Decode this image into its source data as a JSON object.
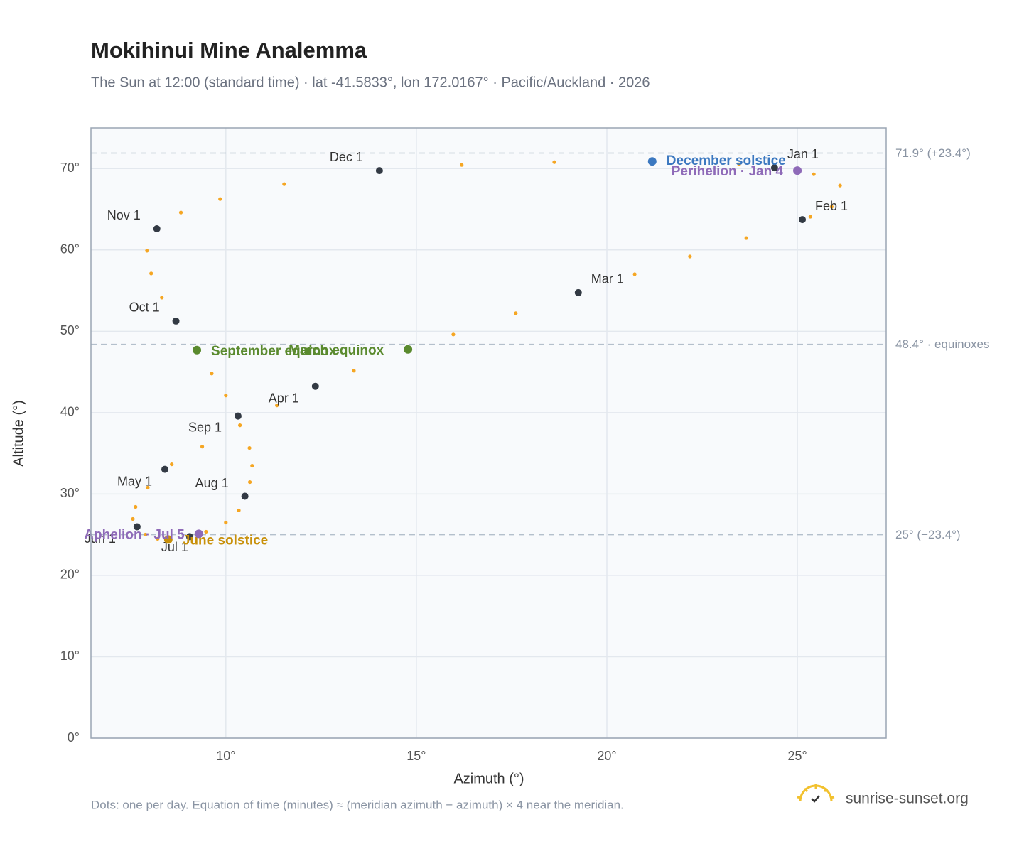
{
  "chart_data": {
    "type": "scatter",
    "title": "Mokihinui Mine Analemma",
    "subtitle": "The Sun at 12:00 (standard time) · lat -41.5833°, lon 172.0167° · Pacific/Auckland · 2026",
    "x_label": "Azimuth (°)",
    "y_label": "Altitude (°)",
    "xlim": [
      6.46,
      27.33
    ],
    "ylim": [
      0,
      75
    ],
    "xticks": [
      {
        "value": 10,
        "label": "10°"
      },
      {
        "value": 15,
        "label": "15°"
      },
      {
        "value": 20,
        "label": "20°"
      },
      {
        "value": 25,
        "label": "25°"
      }
    ],
    "yticks": [
      {
        "value": 0,
        "label": "0°"
      },
      {
        "value": 10,
        "label": "10°"
      },
      {
        "value": 20,
        "label": "20°"
      },
      {
        "value": 30,
        "label": "30°"
      },
      {
        "value": 40,
        "label": "40°"
      },
      {
        "value": 50,
        "label": "50°"
      },
      {
        "value": 60,
        "label": "60°"
      },
      {
        "value": 70,
        "label": "70°"
      }
    ],
    "grid": true,
    "series": [
      {
        "color": "#f5a623",
        "x": [
          24.4,
          25.43,
          26.12,
          25.9,
          25.34,
          25.13,
          23.66,
          22.18,
          20.73,
          19.25,
          17.61,
          15.97,
          14.78,
          13.36,
          12.35,
          11.34,
          10.37,
          9.38,
          8.58,
          8.4,
          7.95,
          7.63,
          7.56,
          7.67,
          7.89,
          8.21,
          8.49,
          9.05,
          9.48,
          10.0,
          10.34,
          10.5,
          10.63,
          10.69,
          10.62,
          10.32,
          10.0,
          9.63,
          9.24,
          8.69,
          8.32,
          8.04,
          7.93,
          8.19,
          8.82,
          9.85,
          11.53,
          14.03,
          16.19,
          18.62,
          21.19,
          23.47
        ],
        "values": [
          70.1,
          69.31,
          67.92,
          65.3,
          64.08,
          63.73,
          61.46,
          59.2,
          57.02,
          54.75,
          52.22,
          49.61,
          47.78,
          45.16,
          43.24,
          40.89,
          38.45,
          35.83,
          33.65,
          33.04,
          30.78,
          28.42,
          26.94,
          25.98,
          25.02,
          24.5,
          24.41,
          24.76,
          25.37,
          26.5,
          27.99,
          29.73,
          31.47,
          33.48,
          35.66,
          39.58,
          42.11,
          44.81,
          47.69,
          51.26,
          54.14,
          57.11,
          59.9,
          62.6,
          64.6,
          66.26,
          68.09,
          69.75,
          70.45,
          70.79,
          70.88,
          70.53
        ]
      }
    ],
    "markers": {
      "color": "#333a44",
      "labels": [
        "Jan 1",
        "Feb 1",
        "Mar 1",
        "Apr 1",
        "May 1",
        "Jun 1",
        "Jul 1",
        "Aug 1",
        "Sep 1",
        "Oct 1",
        "Nov 1",
        "Dec 1"
      ],
      "x": [
        24.4,
        25.13,
        19.25,
        12.35,
        8.4,
        7.67,
        9.05,
        10.5,
        10.32,
        8.69,
        8.19,
        14.03
      ],
      "values": [
        70.1,
        63.73,
        54.75,
        43.24,
        33.04,
        25.98,
        24.76,
        29.73,
        39.58,
        51.26,
        62.6,
        69.75
      ]
    },
    "events": [
      {
        "label": "December solstice",
        "color": "#3b78c0",
        "x": 21.19,
        "y": 70.88
      },
      {
        "label": "Perihelion · Jan 4",
        "color": "#8e6ab8",
        "x": 25.0,
        "y": 69.75
      },
      {
        "label": "March equinox",
        "color": "#5a8a2e",
        "x": 14.78,
        "y": 47.78
      },
      {
        "label": "September equinox",
        "color": "#5a8a2e",
        "x": 9.24,
        "y": 47.69
      },
      {
        "label": "June solstice",
        "color": "#c8900a",
        "x": 8.49,
        "y": 24.41
      },
      {
        "label": "Aphelion · Jul 5",
        "color": "#8e6ab8",
        "x": 9.29,
        "y": 25.11
      }
    ],
    "reference_lines": [
      {
        "value": 71.9,
        "label": "71.9° (+23.4°)"
      },
      {
        "value": 48.4,
        "label": "48.4° · equinoxes"
      },
      {
        "value": 25,
        "label": "25° (−23.4°)"
      }
    ],
    "note": "Dots: one per day. Equation of time (minutes) ≈ (meridian azimuth − azimuth) × 4 near the meridian.",
    "brand": "sunrise-sunset.org"
  }
}
